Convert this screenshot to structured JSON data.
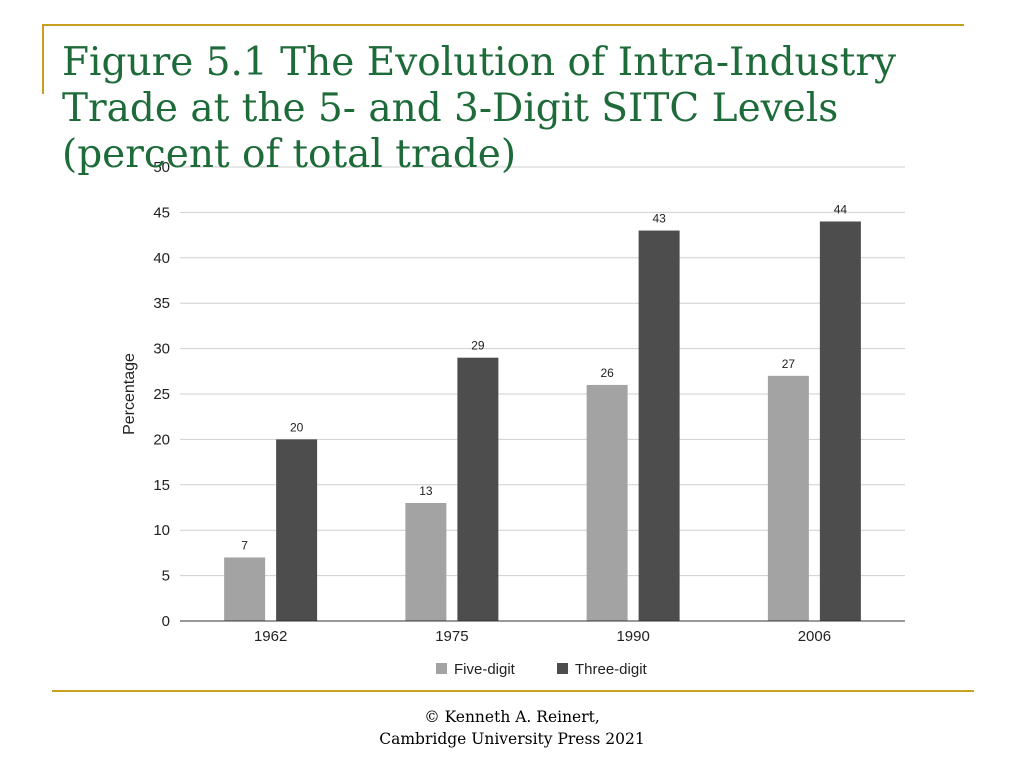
{
  "slide": {
    "title": "Figure 5.1 The Evolution of Intra-Industry Trade at the 5- and 3-Digit SITC Levels (percent of total trade)",
    "footer_line1": "© Kenneth A. Reinert,",
    "footer_line2": "Cambridge University Press 2021",
    "accent_color": "#c8a020",
    "title_color": "#1e6b3a"
  },
  "chart_data": {
    "type": "bar",
    "categories": [
      "1962",
      "1975",
      "1990",
      "2006"
    ],
    "series": [
      {
        "name": "Five-digit",
        "values": [
          7,
          13,
          26,
          27
        ],
        "color": "#a3a3a3"
      },
      {
        "name": "Three-digit",
        "values": [
          20,
          29,
          43,
          44
        ],
        "color": "#4d4d4d"
      }
    ],
    "xlabel": "",
    "ylabel": "Percentage",
    "ylim": [
      0,
      50
    ],
    "yticks": [
      0,
      5,
      10,
      15,
      20,
      25,
      30,
      35,
      40,
      45,
      50
    ],
    "grid": true,
    "legend_position": "bottom",
    "data_labels": true
  }
}
